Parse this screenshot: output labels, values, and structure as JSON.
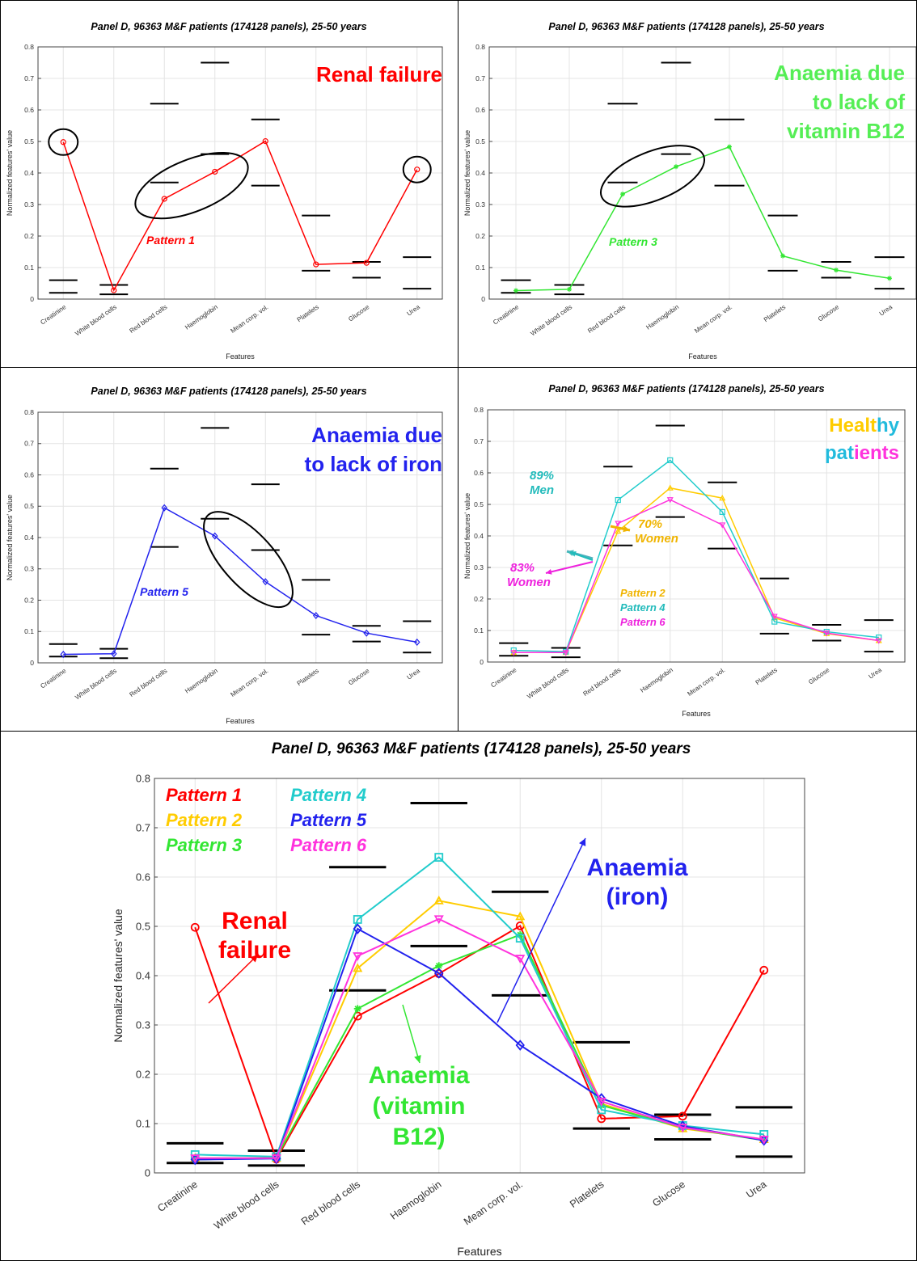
{
  "chart_data": {
    "type": "line",
    "title": "Panel D, 96363 M&F patients (174128 panels), 25-50 years",
    "xlabel": "Features",
    "ylabel": "Normalized features' value",
    "ylim": [
      0,
      0.8
    ],
    "yticks": [
      "0",
      "0.1",
      "0.2",
      "0.3",
      "0.4",
      "0.5",
      "0.6",
      "0.7",
      "0.8"
    ],
    "grid": true,
    "categories": [
      "Creatinine",
      "White blood cells",
      "Red blood cells",
      "Haemoglobin",
      "Mean corp. vol.",
      "Platelets",
      "Glucose",
      "Urea"
    ],
    "reference_ranges": [
      [
        0.02,
        0.06
      ],
      [
        0.015,
        0.045
      ],
      [
        0.37,
        0.62
      ],
      [
        0.46,
        0.75
      ],
      [
        0.36,
        0.57
      ],
      [
        0.09,
        0.265
      ],
      [
        0.068,
        0.118
      ],
      [
        0.033,
        0.133
      ]
    ],
    "series": [
      {
        "name": "Pattern 1",
        "color": "#ff0000",
        "marker": "circle",
        "values": [
          0.498,
          0.028,
          0.318,
          0.404,
          0.501,
          0.11,
          0.115,
          0.411
        ]
      },
      {
        "name": "Pattern 2",
        "color": "#ffcc00",
        "marker": "triangle-up",
        "values": [
          0.03,
          0.03,
          0.415,
          0.552,
          0.52,
          0.14,
          0.09,
          0.068
        ]
      },
      {
        "name": "Pattern 3",
        "color": "#33e633",
        "marker": "asterisk",
        "values": [
          0.027,
          0.031,
          0.333,
          0.42,
          0.483,
          0.137,
          0.092,
          0.066
        ]
      },
      {
        "name": "Pattern 4",
        "color": "#22cccc",
        "marker": "square",
        "values": [
          0.037,
          0.033,
          0.514,
          0.64,
          0.476,
          0.128,
          0.096,
          0.078
        ]
      },
      {
        "name": "Pattern 5",
        "color": "#2222ee",
        "marker": "diamond",
        "values": [
          0.027,
          0.029,
          0.495,
          0.405,
          0.259,
          0.151,
          0.095,
          0.066
        ]
      },
      {
        "name": "Pattern 6",
        "color": "#ff33dd",
        "marker": "triangle-down",
        "values": [
          0.03,
          0.03,
          0.44,
          0.515,
          0.435,
          0.145,
          0.092,
          0.068
        ]
      }
    ]
  },
  "panels": {
    "renal": {
      "label": "Renal failure",
      "pattern": "Pattern 1"
    },
    "b12": {
      "label_lines": [
        "Anaemia due",
        "to lack of",
        "vitamin B12"
      ],
      "pattern": "Pattern 3"
    },
    "iron": {
      "label_lines": [
        "Anaemia due",
        "to lack of iron"
      ],
      "pattern": "Pattern 5"
    },
    "healthy": {
      "label_line1": [
        "Healt",
        "hy"
      ],
      "label_line2": [
        "pat",
        "ients"
      ],
      "men_pct": "89%",
      "men": "Men",
      "women70_pct": "70%",
      "women70": "Women",
      "women83_pct": "83%",
      "women83": "Women",
      "patterns": [
        "Pattern 2",
        "Pattern 4",
        "Pattern 6"
      ]
    },
    "combined": {
      "legend": [
        "Pattern 1",
        "Pattern 2",
        "Pattern 3",
        "Pattern 4",
        "Pattern 5",
        "Pattern 6"
      ],
      "renal_lines": [
        "Renal",
        "failure"
      ],
      "iron_lines": [
        "Anaemia",
        "(iron)"
      ],
      "b12_lines": [
        "Anaemia",
        "(vitamin",
        "B12)"
      ]
    }
  }
}
